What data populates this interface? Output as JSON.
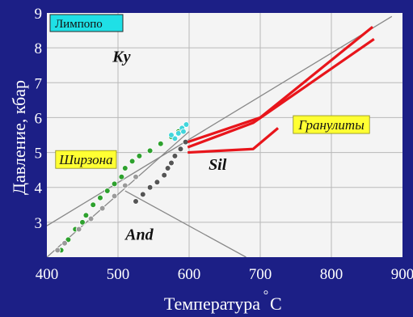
{
  "colors": {
    "background": "#1c1f86",
    "plot_area": "#f4f4f4",
    "curve": "#e8151b",
    "label_box": "#ffff33",
    "region_box": "#1fe0e6",
    "reaction_line": "#888888"
  },
  "chart_data": {
    "type": "scatter",
    "region_label": "Лимпопо",
    "xlabel": "Температура",
    "xlabel_unit": "С",
    "xlabel_degree": "°",
    "ylabel": "Давление, кбар",
    "xlim": [
      400,
      900
    ],
    "ylim": [
      2,
      9
    ],
    "x_ticks": [
      400,
      500,
      600,
      700,
      800,
      900
    ],
    "y_ticks": [
      3,
      4,
      5,
      6,
      7,
      8,
      9
    ],
    "fields": [
      {
        "label": "Ky",
        "x": 505,
        "y": 7.6
      },
      {
        "label": "Sil",
        "x": 640,
        "y": 4.5
      },
      {
        "label": "And",
        "x": 530,
        "y": 2.5
      }
    ],
    "callouts": [
      {
        "label": "Гранулиты",
        "x": 800,
        "y": 5.8
      },
      {
        "label": "Ширзона",
        "x": 455,
        "y": 4.8
      }
    ],
    "reaction_lines": [
      {
        "name": "Ky-And",
        "points": [
          [
            400,
            2.9
          ],
          [
            885,
            8.9
          ]
        ]
      },
      {
        "name": "Ky-Sil",
        "points": [
          [
            400,
            2.0
          ],
          [
            600,
            5.6
          ]
        ]
      },
      {
        "name": "Sil-And",
        "points": [
          [
            510,
            3.9
          ],
          [
            680,
            2.0
          ]
        ]
      }
    ],
    "series": [
      {
        "name": "Гранулиты",
        "color": "#e8151b",
        "paths": [
          [
            [
              598,
              5.3
            ],
            [
              700,
              6.0
            ],
            [
              858,
              8.6
            ]
          ],
          [
            [
              598,
              5.15
            ],
            [
              690,
              5.85
            ],
            [
              860,
              8.25
            ]
          ],
          [
            [
              598,
              5.0
            ],
            [
              690,
              5.1
            ],
            [
              725,
              5.7
            ]
          ]
        ]
      },
      {
        "name": "Ширзона",
        "color": "#2ea12e",
        "points": [
          [
            420,
            2.2
          ],
          [
            430,
            2.5
          ],
          [
            440,
            2.8
          ],
          [
            450,
            3.0
          ],
          [
            455,
            3.2
          ],
          [
            465,
            3.5
          ],
          [
            475,
            3.7
          ],
          [
            485,
            3.9
          ],
          [
            495,
            4.1
          ],
          [
            505,
            4.3
          ],
          [
            510,
            4.55
          ],
          [
            520,
            4.75
          ],
          [
            530,
            4.9
          ],
          [
            545,
            5.05
          ],
          [
            560,
            5.25
          ],
          [
            575,
            5.45
          ],
          [
            585,
            5.6
          ]
        ]
      },
      {
        "name": "",
        "color": "#9a9a9a",
        "points": [
          [
            415,
            2.2
          ],
          [
            425,
            2.4
          ],
          [
            445,
            2.8
          ],
          [
            462,
            3.1
          ],
          [
            478,
            3.4
          ],
          [
            495,
            3.75
          ],
          [
            510,
            4.05
          ],
          [
            525,
            4.3
          ]
        ]
      },
      {
        "name": "",
        "color": "#555555",
        "points": [
          [
            525,
            3.6
          ],
          [
            535,
            3.8
          ],
          [
            545,
            4.0
          ],
          [
            555,
            4.15
          ],
          [
            565,
            4.35
          ],
          [
            570,
            4.55
          ],
          [
            575,
            4.7
          ],
          [
            580,
            4.9
          ],
          [
            588,
            5.1
          ],
          [
            595,
            5.3
          ]
        ]
      },
      {
        "name": "",
        "color": "#41d6dc",
        "points": [
          [
            580,
            5.4
          ],
          [
            585,
            5.55
          ],
          [
            590,
            5.7
          ],
          [
            596,
            5.8
          ],
          [
            575,
            5.5
          ],
          [
            592,
            5.6
          ]
        ]
      }
    ]
  }
}
